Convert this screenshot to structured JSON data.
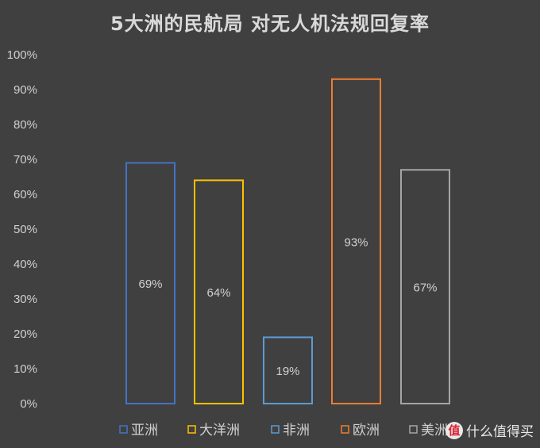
{
  "chart_data": {
    "type": "bar",
    "title": "5大洲的民航局 对无人机法规回复率",
    "categories": [
      "亚洲",
      "大洋洲",
      "非洲",
      "欧洲",
      "美洲"
    ],
    "values": [
      69,
      64,
      19,
      93,
      67
    ],
    "data_labels": [
      "69%",
      "64%",
      "19%",
      "93%",
      "67%"
    ],
    "colors": [
      "#4472c4",
      "#ffc000",
      "#5b9bd5",
      "#ed7d31",
      "#a5a5a5"
    ],
    "ylim": [
      0,
      100
    ],
    "yticks": [
      "0%",
      "10%",
      "20%",
      "30%",
      "40%",
      "50%",
      "60%",
      "70%",
      "80%",
      "90%",
      "100%"
    ],
    "xlabel": "",
    "ylabel": "",
    "grid": false,
    "legend": "bottom"
  },
  "watermark": {
    "logo_text": "值",
    "text": "什么值得买"
  }
}
